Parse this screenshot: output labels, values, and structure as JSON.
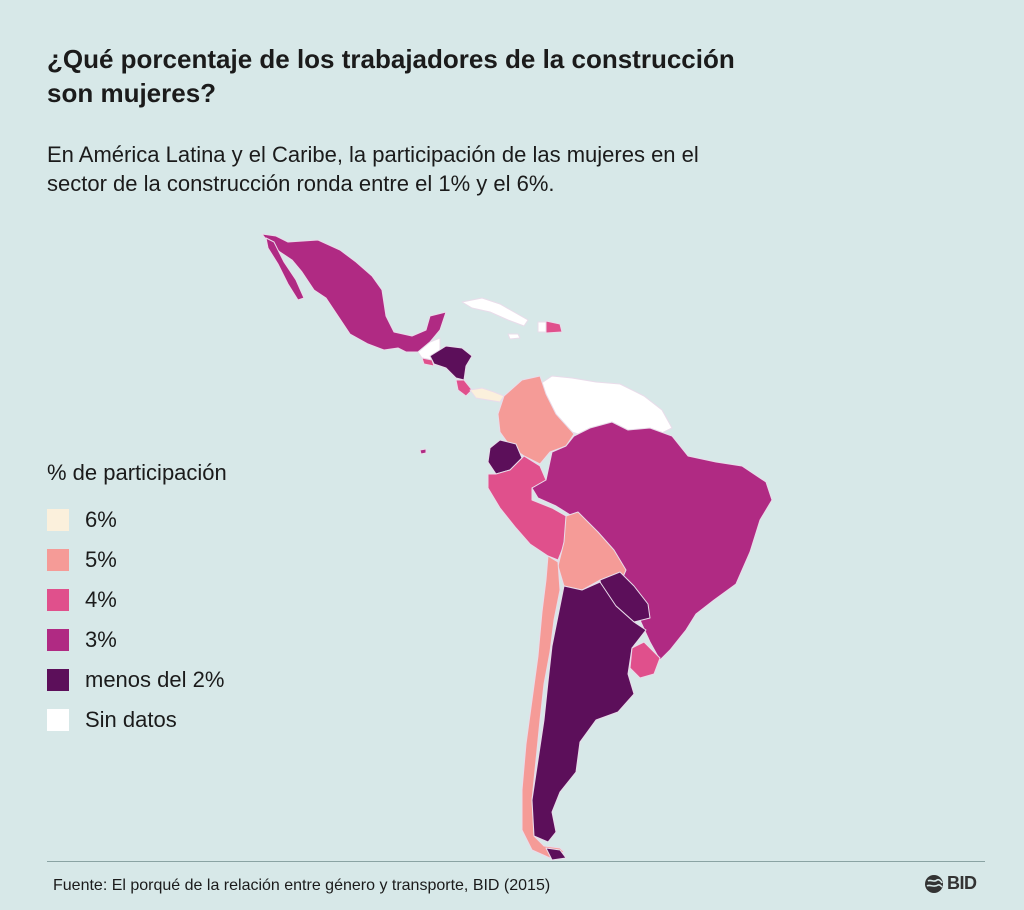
{
  "header": {
    "title_line1": "¿Qué porcentaje de los trabajadores de la construcción",
    "title_line2": "son mujeres?",
    "subtitle_line1": "En América Latina y el Caribe, la participación de las mujeres en el",
    "subtitle_line2": "sector de la construcción ronda entre el 1% y el 6%."
  },
  "legend": {
    "title": "% de participación",
    "items": [
      {
        "label": "6%",
        "color": "#fbf0dc"
      },
      {
        "label": "5%",
        "color": "#f59b97"
      },
      {
        "label": "4%",
        "color": "#e0508c"
      },
      {
        "label": "3%",
        "color": "#b02a83"
      },
      {
        "label": "menos del 2%",
        "color": "#5c0f5a"
      },
      {
        "label": "Sin datos",
        "color": "#ffffff"
      }
    ]
  },
  "footer": {
    "source": "Fuente: El porqué de la relación entre género y transporte, BID (2015)",
    "logo_text": "BID"
  }
}
